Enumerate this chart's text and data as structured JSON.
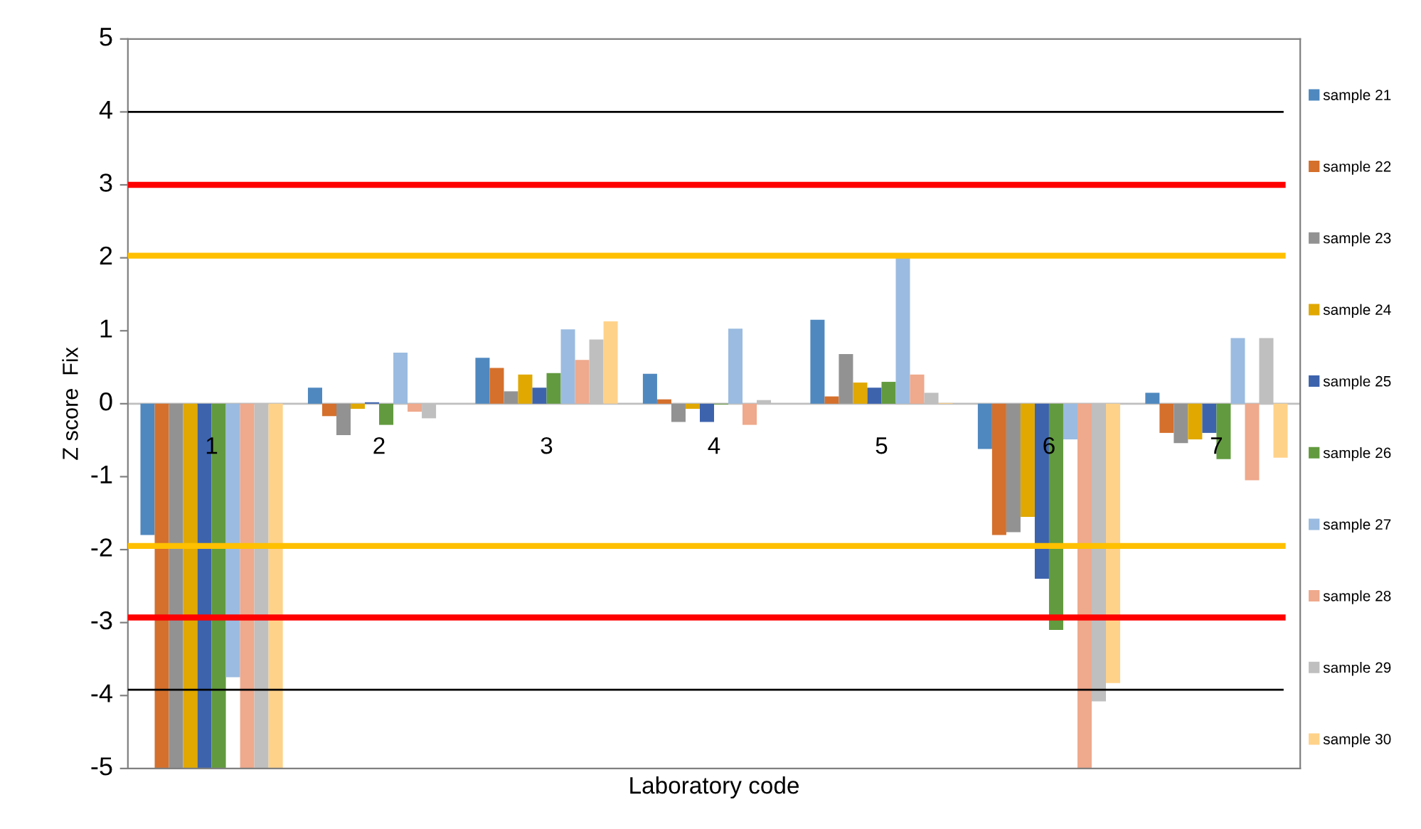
{
  "chart_data": {
    "type": "bar",
    "xlabel": "Laboratory code",
    "ylabel": "Z score  Fix",
    "categories": [
      "1",
      "2",
      "3",
      "4",
      "5",
      "6",
      "7"
    ],
    "series": [
      {
        "name": "sample 21",
        "color": "#4f88bf",
        "values": [
          -1.8,
          0.22,
          0.63,
          0.41,
          1.15,
          -0.62,
          0.15
        ]
      },
      {
        "name": "sample 22",
        "color": "#d4702c",
        "values": [
          -5,
          -0.17,
          0.49,
          0.06,
          0.1,
          -1.8,
          -0.4
        ]
      },
      {
        "name": "sample 23",
        "color": "#929292",
        "values": [
          -5,
          -0.43,
          0.17,
          -0.25,
          0.68,
          -1.76,
          -0.54
        ]
      },
      {
        "name": "sample 24",
        "color": "#e0a800",
        "values": [
          -5,
          -0.07,
          0.4,
          -0.07,
          0.29,
          -1.55,
          -0.49
        ]
      },
      {
        "name": "sample 25",
        "color": "#3d63ad",
        "values": [
          -5,
          0.02,
          0.22,
          -0.25,
          0.22,
          -2.4,
          -0.4
        ]
      },
      {
        "name": "sample 26",
        "color": "#629a3f",
        "values": [
          -5,
          -0.29,
          0.42,
          -0.01,
          0.3,
          -3.1,
          -0.76
        ]
      },
      {
        "name": "sample 27",
        "color": "#9bbbe0",
        "values": [
          -3.75,
          0.7,
          1.02,
          1.03,
          2.0,
          -0.49,
          0.9
        ]
      },
      {
        "name": "sample 28",
        "color": "#efa98c",
        "values": [
          -5,
          -0.11,
          0.6,
          -0.29,
          0.4,
          -5,
          -1.05
        ]
      },
      {
        "name": "sample 29",
        "color": "#bfbfbf",
        "values": [
          -5,
          -0.2,
          0.88,
          0.05,
          0.15,
          -4.08,
          0.9
        ]
      },
      {
        "name": "sample 30",
        "color": "#ffd28a",
        "values": [
          -5,
          0,
          1.13,
          0,
          0.01,
          -3.83,
          -0.74
        ]
      }
    ],
    "ylim": [
      -5,
      5
    ],
    "yticks": [
      -5,
      -4,
      -3,
      -2,
      -1,
      0,
      1,
      2,
      3,
      4,
      5
    ],
    "ref_lines": [
      {
        "axis": "y",
        "value": 3,
        "color": "#ff0000"
      },
      {
        "axis": "y",
        "value": 2.03,
        "color": "#ffc000"
      },
      {
        "axis": "y",
        "value": -1.95,
        "color": "#ffc000"
      },
      {
        "axis": "y",
        "value": -2.93,
        "color": "#ff0000"
      },
      {
        "axis": "y",
        "value": 4,
        "color": "#000000"
      },
      {
        "axis": "y",
        "value": -3.92,
        "color": "#000000"
      }
    ],
    "grid": false,
    "legend": "right"
  }
}
